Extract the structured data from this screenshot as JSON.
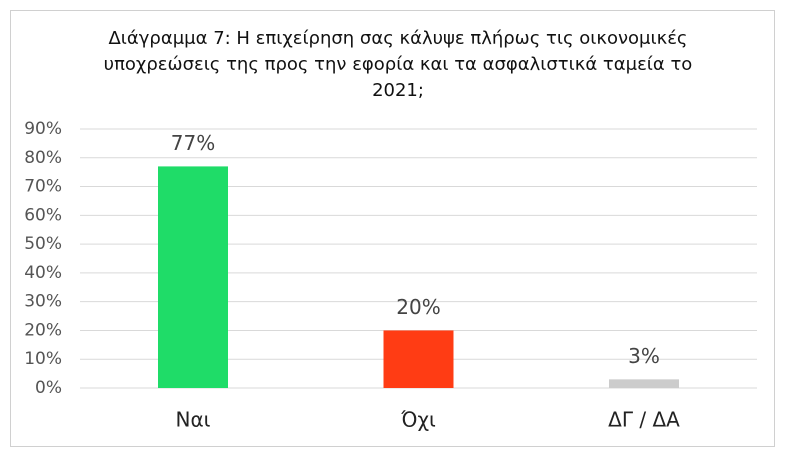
{
  "chart_data": {
    "type": "bar",
    "title": "Διάγραμμα 7: Η επιχείρηση σας κάλυψε πλήρως τις οικονομικές υποχρεώσεις της προς την εφορία και τα ασφαλιστικά ταμεία το 2021;",
    "categories": [
      "Ναι",
      "Όχι",
      "ΔΓ / ΔΑ"
    ],
    "values": [
      77,
      20,
      3
    ],
    "value_labels": [
      "77%",
      "20%",
      "3%"
    ],
    "colors": [
      "#1fdc68",
      "#ff3c14",
      "#cccccc"
    ],
    "ylim": [
      0,
      90
    ],
    "yticks": [
      {
        "value": 0,
        "label": "0%"
      },
      {
        "value": 10,
        "label": "10%"
      },
      {
        "value": 20,
        "label": "20%"
      },
      {
        "value": 30,
        "label": "30%"
      },
      {
        "value": 40,
        "label": "40%"
      },
      {
        "value": 50,
        "label": "50%"
      },
      {
        "value": 60,
        "label": "60%"
      },
      {
        "value": 70,
        "label": "70%"
      },
      {
        "value": 80,
        "label": "80%"
      },
      {
        "value": 90,
        "label": "90%"
      }
    ],
    "grid": true
  }
}
